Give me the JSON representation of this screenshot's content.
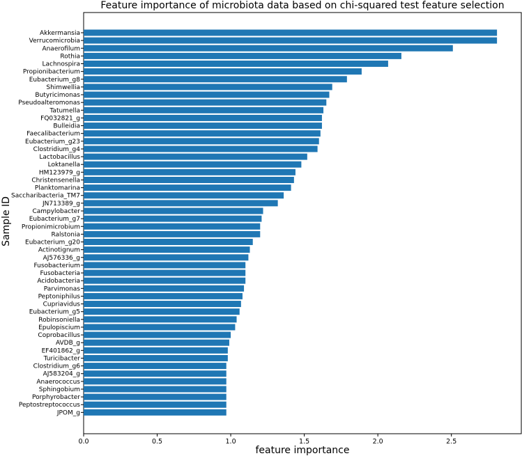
{
  "chart_data": {
    "type": "bar",
    "orientation": "horizontal",
    "title": "Feature importance of microbiota data based on chi-squared test feature selection",
    "xlabel": "feature importance",
    "ylabel": "Sample ID",
    "xlim": [
      0,
      2.98
    ],
    "xticks": [
      "0.0",
      "0.5",
      "1.0",
      "1.5",
      "2.0",
      "2.5"
    ],
    "bar_color": "#1f77b4",
    "grid": false,
    "categories": [
      "Akkermansia",
      "Verrucomicrobia",
      "Anaerofilum",
      "Rothia",
      "Lachnospira",
      "Propionibacterium",
      "Eubacterium_g8",
      "Shimwellia",
      "Butyricimonas",
      "Pseudoalteromonas",
      "Tatumella",
      "FQ032821_g",
      "Bulleidia",
      "Faecalibacterium",
      "Eubacterium_g23",
      "Clostridium_g4",
      "Lactobacillus",
      "Loktanella",
      "HM123979_g",
      "Christensenella",
      "Planktomarina",
      "Saccharibacteria_TM7",
      "JN713389_g",
      "Campylobacter",
      "Eubacterium_g7",
      "Propionimicrobium",
      "Ralstonia",
      "Eubacterium_g20",
      "Actinotignum",
      "AJ576336_g",
      "Fusobacterium",
      "Fusobacteria",
      "Acidobacteria",
      "Parvimonas",
      "Peptoniphilus",
      "Cupriavidus",
      "Eubacterium_g5",
      "Robinsoniella",
      "Epulopiscium",
      "Coprobacillus",
      "AVDB_g",
      "EF401862_g",
      "Turicibacter",
      "Clostridium_g6",
      "AJ583204_g",
      "Anaerococcus",
      "Sphingobium",
      "Porphyrobacter",
      "Peptostreptococcus",
      "JPOM_g"
    ],
    "values": [
      2.81,
      2.81,
      2.51,
      2.16,
      2.07,
      1.89,
      1.79,
      1.69,
      1.67,
      1.65,
      1.63,
      1.62,
      1.62,
      1.61,
      1.6,
      1.59,
      1.52,
      1.48,
      1.44,
      1.43,
      1.41,
      1.36,
      1.32,
      1.22,
      1.21,
      1.2,
      1.2,
      1.15,
      1.13,
      1.12,
      1.1,
      1.1,
      1.1,
      1.09,
      1.08,
      1.07,
      1.06,
      1.04,
      1.03,
      1.0,
      0.99,
      0.98,
      0.98,
      0.97,
      0.97,
      0.97,
      0.97,
      0.97,
      0.97,
      0.97
    ]
  }
}
